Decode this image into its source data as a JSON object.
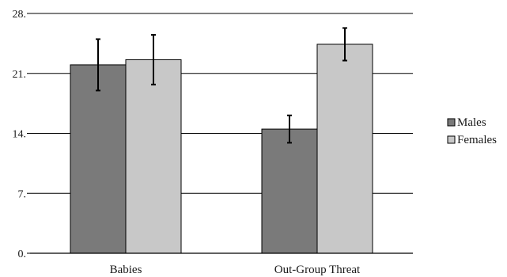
{
  "chart_data": {
    "type": "bar",
    "categories": [
      "Babies",
      "Out-Group Threat"
    ],
    "series": [
      {
        "name": "Males",
        "color": "#7a7a7a",
        "values": [
          22.0,
          14.5
        ],
        "error": [
          3.0,
          1.6
        ]
      },
      {
        "name": "Females",
        "color": "#c8c8c8",
        "values": [
          22.6,
          24.4
        ],
        "error": [
          2.9,
          1.9
        ]
      }
    ],
    "ylim": [
      0,
      28
    ],
    "yticks": [
      0,
      7,
      14,
      21,
      28
    ],
    "ytick_labels": [
      "0.",
      "7.",
      "14.",
      "21.",
      "28."
    ],
    "grid": true,
    "legend_position": "right",
    "title": "",
    "xlabel": "",
    "ylabel": ""
  }
}
